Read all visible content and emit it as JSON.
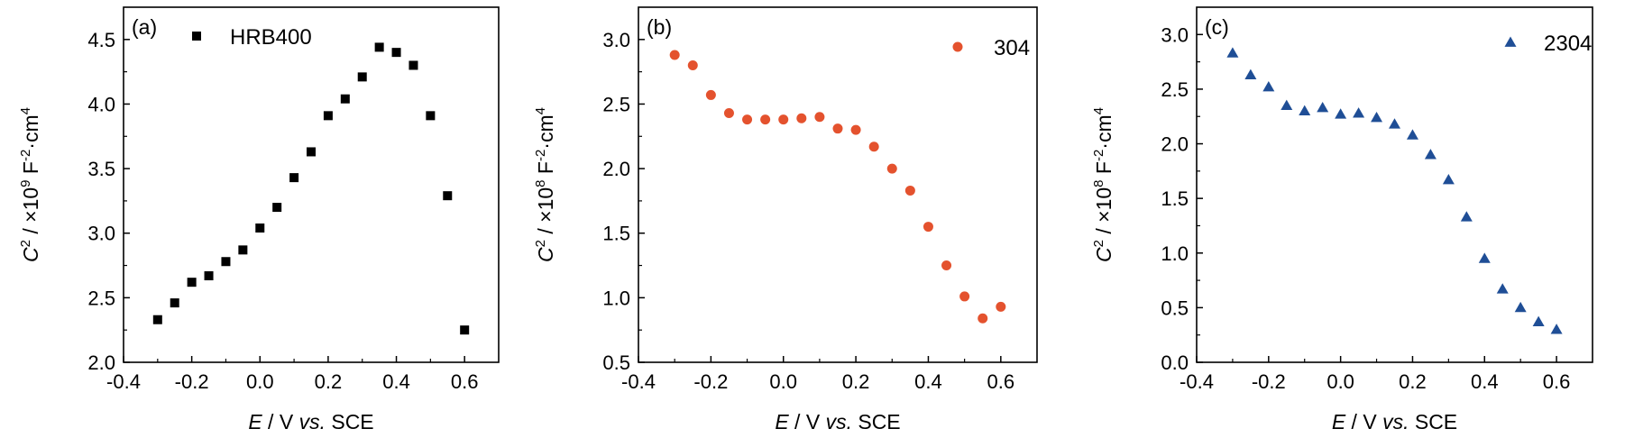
{
  "chart_data": [
    {
      "type": "scatter",
      "panel_label": "(a)",
      "xlabel": {
        "main": "E",
        "rest": " / V ",
        "italic2": "vs.",
        "tail": " SCE"
      },
      "ylabel": {
        "sym": "C",
        "sup1": "2",
        "mid": " / ×10",
        "sup2": "9",
        "unit": " F",
        "sup3": "-2",
        "tail": "·cm",
        "sup4": "4"
      },
      "xlim": [
        -0.4,
        0.7
      ],
      "ylim": [
        2.0,
        4.75
      ],
      "xticks": [
        -0.4,
        -0.2,
        0.0,
        0.2,
        0.4,
        0.6
      ],
      "xtick_labels": [
        "-0.4",
        "-0.2",
        "0.0",
        "0.2",
        "0.4",
        "0.6"
      ],
      "yticks": [
        2.0,
        2.5,
        3.0,
        3.5,
        4.0,
        4.5
      ],
      "ytick_labels": [
        "2.0",
        "2.5",
        "3.0",
        "3.5",
        "4.0",
        "4.5"
      ],
      "legend_placement": "top-left",
      "series": [
        {
          "name": "HRB400",
          "marker": "square",
          "color": "#000000",
          "x": [
            -0.3,
            -0.25,
            -0.2,
            -0.15,
            -0.1,
            -0.05,
            0.0,
            0.05,
            0.1,
            0.15,
            0.2,
            0.25,
            0.3,
            0.35,
            0.4,
            0.45,
            0.5,
            0.55,
            0.6
          ],
          "y": [
            2.33,
            2.46,
            2.62,
            2.67,
            2.78,
            2.87,
            3.04,
            3.2,
            3.43,
            3.63,
            3.91,
            4.04,
            4.21,
            4.44,
            4.4,
            4.3,
            3.91,
            3.29,
            2.25
          ]
        }
      ]
    },
    {
      "type": "scatter",
      "panel_label": "(b)",
      "xlabel": {
        "main": "E",
        "rest": " / V ",
        "italic2": "vs.",
        "tail": " SCE"
      },
      "ylabel": {
        "sym": "C",
        "sup1": "2",
        "mid": " / ×10",
        "sup2": "8",
        "unit": " F",
        "sup3": "-2",
        "tail": "·cm",
        "sup4": "4"
      },
      "xlim": [
        -0.4,
        0.7
      ],
      "ylim": [
        0.5,
        3.25
      ],
      "xticks": [
        -0.4,
        -0.2,
        0.0,
        0.2,
        0.4,
        0.6
      ],
      "xtick_labels": [
        "-0.4",
        "-0.2",
        "0.0",
        "0.2",
        "0.4",
        "0.6"
      ],
      "yticks": [
        0.5,
        1.0,
        1.5,
        2.0,
        2.5,
        3.0
      ],
      "ytick_labels": [
        "0.5",
        "1.0",
        "1.5",
        "2.0",
        "2.5",
        "3.0"
      ],
      "legend_placement": "top-right",
      "series": [
        {
          "name": "304",
          "marker": "circle",
          "color": "#e4522e",
          "x": [
            -0.3,
            -0.25,
            -0.2,
            -0.15,
            -0.1,
            -0.05,
            0.0,
            0.05,
            0.1,
            0.15,
            0.2,
            0.25,
            0.3,
            0.35,
            0.4,
            0.45,
            0.5,
            0.55,
            0.6
          ],
          "y": [
            2.88,
            2.8,
            2.57,
            2.43,
            2.38,
            2.38,
            2.38,
            2.39,
            2.4,
            2.31,
            2.3,
            2.17,
            2.0,
            1.83,
            1.55,
            1.25,
            1.01,
            0.84,
            0.93
          ]
        }
      ]
    },
    {
      "type": "scatter",
      "panel_label": "(c)",
      "xlabel": {
        "main": "E",
        "rest": " / V ",
        "italic2": "vs.",
        "tail": " SCE"
      },
      "ylabel": {
        "sym": "C",
        "sup1": "2",
        "mid": " / ×10",
        "sup2": "8",
        "unit": " F",
        "sup3": "-2",
        "tail": "·cm",
        "sup4": "4"
      },
      "xlim": [
        -0.4,
        0.7
      ],
      "ylim": [
        0.0,
        3.25
      ],
      "xticks": [
        -0.4,
        -0.2,
        0.0,
        0.2,
        0.4,
        0.6
      ],
      "xtick_labels": [
        "-0.4",
        "-0.2",
        "0.0",
        "0.2",
        "0.4",
        "0.6"
      ],
      "yticks": [
        0.0,
        0.5,
        1.0,
        1.5,
        2.0,
        2.5,
        3.0
      ],
      "ytick_labels": [
        "0.0",
        "0.5",
        "1.0",
        "1.5",
        "2.0",
        "2.5",
        "3.0"
      ],
      "legend_placement": "top-right",
      "series": [
        {
          "name": "2304",
          "marker": "triangle",
          "color": "#1f4e96",
          "x": [
            -0.3,
            -0.25,
            -0.2,
            -0.15,
            -0.1,
            -0.05,
            0.0,
            0.05,
            0.1,
            0.15,
            0.2,
            0.25,
            0.3,
            0.35,
            0.4,
            0.45,
            0.5,
            0.55,
            0.6
          ],
          "y": [
            2.83,
            2.63,
            2.52,
            2.35,
            2.3,
            2.33,
            2.27,
            2.28,
            2.24,
            2.18,
            2.08,
            1.9,
            1.67,
            1.33,
            0.95,
            0.67,
            0.5,
            0.37,
            0.3
          ]
        }
      ]
    }
  ]
}
